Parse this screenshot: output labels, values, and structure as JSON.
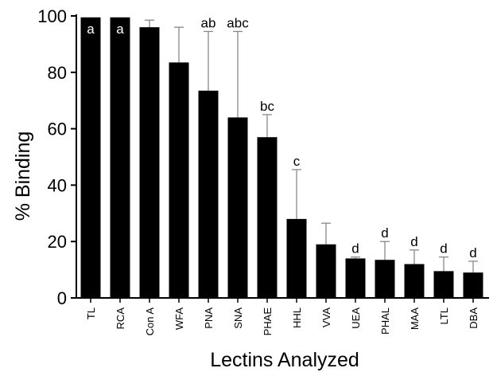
{
  "chart_data": {
    "type": "bar",
    "title": "",
    "xlabel": "Lectins Analyzed",
    "ylabel": "% Binding",
    "ylim": [
      0,
      100
    ],
    "yticks": [
      0,
      20,
      40,
      60,
      80,
      100
    ],
    "grid": false,
    "legend": "none",
    "bar_color": "#000000",
    "error_bar_color": "#888888",
    "categories": [
      "TL",
      "RCA",
      "Con A",
      "WFA",
      "PNA",
      "SNA",
      "PHAE",
      "HHL",
      "VVA",
      "UEA",
      "PHAL",
      "MAA",
      "LTL",
      "DBA"
    ],
    "values": [
      99.5,
      99.5,
      96,
      83.5,
      73.5,
      64,
      57,
      28,
      19,
      14,
      13.5,
      12,
      9.5,
      9
    ],
    "error_upper": [
      0,
      0,
      2.5,
      12.5,
      21,
      30.5,
      8,
      17.5,
      7.5,
      0.5,
      6.5,
      5,
      5,
      4
    ],
    "annotations": [
      "a",
      "a",
      "",
      "",
      "ab",
      "abc",
      "bc",
      "c",
      "",
      "d",
      "d",
      "d",
      "d",
      "d"
    ]
  }
}
